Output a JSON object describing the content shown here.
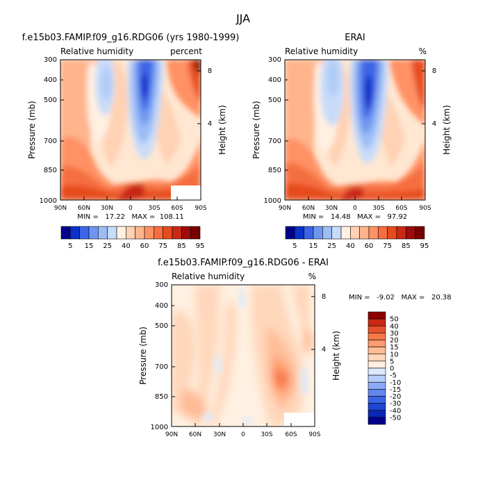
{
  "title": "JJA",
  "colors": {
    "main_scale": [
      "#00008c",
      "#0a32c8",
      "#3c64e6",
      "#6e96f0",
      "#9bbcf5",
      "#c8dcfa",
      "#fff0e1",
      "#ffd2b4",
      "#ffb48c",
      "#ff9164",
      "#f56e41",
      "#e64b1e",
      "#c82814",
      "#a00a0a",
      "#780000"
    ],
    "diff_scale": [
      "#00008c",
      "#0a28b4",
      "#1e46d2",
      "#3c64e6",
      "#6487ee",
      "#8caaf5",
      "#b4cdfa",
      "#dceafd",
      "#fff0e1",
      "#ffd7bb",
      "#ffbc96",
      "#ff9b6e",
      "#f57846",
      "#e6502a",
      "#c82814",
      "#8c0000"
    ]
  },
  "panels": {
    "model": {
      "title": "f.e15b03.FAMIP.f09_g16.RDG06 (yrs 1980-1999)",
      "left_label": "Relative humidity",
      "right_label": "percent",
      "stats": "MIN =   17.22   MAX =  108.11"
    },
    "obs": {
      "title": "ERAI",
      "left_label": "Relative humidity",
      "right_label": "%",
      "stats": "MIN =   14.48   MAX =   97.92"
    },
    "diff": {
      "title": "f.e15b03.FAMIP.f09_g16.RDG06 - ERAI",
      "left_label": "Relative humidity",
      "right_label": "%",
      "stats": "MIN =   -9.02   MAX =   20.38"
    }
  },
  "chart_data": {
    "type": "heatmap",
    "x": [
      "90N",
      "60N",
      "30N",
      "0",
      "30S",
      "60S",
      "90S"
    ],
    "y_pressure": [
      "300",
      "400",
      "500",
      "700",
      "850",
      "1000"
    ],
    "y_height": [
      "8",
      "4"
    ],
    "ylabel": "Pressure (mb)",
    "ylabel_right": "Height (km)",
    "main_colorbar_labels": [
      "5",
      "15",
      "25",
      "40",
      "60",
      "75",
      "85",
      "95"
    ],
    "diff_colorbar_labels": [
      "50",
      "40",
      "30",
      "20",
      "15",
      "10",
      "5",
      "0",
      "-5",
      "-10",
      "-15",
      "-20",
      "-30",
      "-40",
      "-50"
    ],
    "model_min": 17.22,
    "model_max": 108.11,
    "obs_min": 14.48,
    "obs_max": 97.92,
    "diff_min": -9.02,
    "diff_max": 20.38
  }
}
